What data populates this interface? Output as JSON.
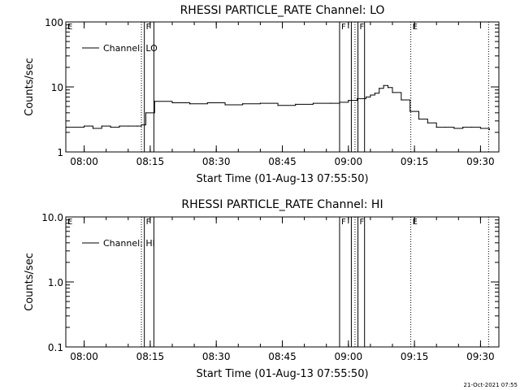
{
  "footer": {
    "timestamp": "21-Oct-2021 07:55"
  },
  "chart_data": [
    {
      "type": "line",
      "title": "RHESSI PARTICLE_RATE Channel: LO",
      "xlabel": "Start Time (01-Aug-13 07:55:50)",
      "ylabel": "Counts/sec",
      "y_scale": "log",
      "ylim": [
        1,
        100
      ],
      "xlim": [
        "07:55:50",
        "09:34:10"
      ],
      "x_ticks": [
        "08:00",
        "08:15",
        "08:30",
        "08:45",
        "09:00",
        "09:15",
        "09:30"
      ],
      "y_ticks": [
        "1",
        "10",
        "100"
      ],
      "legend": {
        "placement": "top-left",
        "entries": [
          "Channel: LO"
        ]
      },
      "event_markers": [
        {
          "label": "E",
          "time": "07:55:50",
          "style": "dotted"
        },
        {
          "label": "",
          "time": "08:13:00",
          "style": "dotted"
        },
        {
          "label": "F",
          "time": "08:13:40",
          "style": "solid"
        },
        {
          "label": "",
          "time": "08:15:50",
          "style": "solid"
        },
        {
          "label": "F",
          "time": "08:58:00",
          "style": "solid"
        },
        {
          "label": "",
          "time": "09:00:40",
          "style": "solid"
        },
        {
          "label": "",
          "time": "09:01:30",
          "style": "dotted"
        },
        {
          "label": "F",
          "time": "09:02:10",
          "style": "solid"
        },
        {
          "label": "",
          "time": "09:03:40",
          "style": "solid"
        },
        {
          "label": "E",
          "time": "09:14:10",
          "style": "dotted"
        },
        {
          "label": "",
          "time": "09:31:50",
          "style": "dotted"
        }
      ],
      "series": [
        {
          "name": "Channel: LO",
          "x": [
            "07:56:00",
            "08:00:00",
            "08:02:00",
            "08:04:00",
            "08:06:00",
            "08:08:00",
            "08:10:00",
            "08:12:00",
            "08:13:00",
            "08:14:00",
            "08:16:00",
            "08:20:00",
            "08:24:00",
            "08:28:00",
            "08:32:00",
            "08:36:00",
            "08:40:00",
            "08:44:00",
            "08:48:00",
            "08:52:00",
            "08:56:00",
            "08:58:00",
            "09:00:00",
            "09:02:00",
            "09:04:00",
            "09:05:00",
            "09:06:00",
            "09:07:00",
            "09:08:00",
            "09:09:00",
            "09:10:00",
            "09:12:00",
            "09:14:00",
            "09:16:00",
            "09:18:00",
            "09:20:00",
            "09:22:00",
            "09:24:00",
            "09:26:00",
            "09:28:00",
            "09:30:00",
            "09:32:00"
          ],
          "values": [
            2.4,
            2.5,
            2.3,
            2.5,
            2.4,
            2.5,
            2.5,
            2.5,
            2.6,
            4.0,
            6.0,
            5.7,
            5.5,
            5.7,
            5.3,
            5.5,
            5.6,
            5.2,
            5.4,
            5.6,
            5.6,
            5.8,
            6.2,
            6.6,
            7.0,
            7.5,
            8.0,
            9.5,
            10.5,
            9.8,
            8.2,
            6.3,
            4.2,
            3.2,
            2.8,
            2.4,
            2.4,
            2.3,
            2.4,
            2.4,
            2.3,
            2.2
          ]
        }
      ]
    },
    {
      "type": "line",
      "title": "RHESSI PARTICLE_RATE Channel: HI",
      "xlabel": "Start Time (01-Aug-13 07:55:50)",
      "ylabel": "Counts/sec",
      "y_scale": "log",
      "ylim": [
        0.1,
        10
      ],
      "xlim": [
        "07:55:50",
        "09:34:10"
      ],
      "x_ticks": [
        "08:00",
        "08:15",
        "08:30",
        "08:45",
        "09:00",
        "09:15",
        "09:30"
      ],
      "y_ticks": [
        "0.1",
        "1.0",
        "10.0"
      ],
      "legend": {
        "placement": "top-left",
        "entries": [
          "Channel: HI"
        ]
      },
      "event_markers": [
        {
          "label": "E",
          "time": "07:55:50",
          "style": "dotted"
        },
        {
          "label": "",
          "time": "08:13:00",
          "style": "dotted"
        },
        {
          "label": "F",
          "time": "08:13:40",
          "style": "solid"
        },
        {
          "label": "",
          "time": "08:15:50",
          "style": "solid"
        },
        {
          "label": "F",
          "time": "08:58:00",
          "style": "solid"
        },
        {
          "label": "",
          "time": "09:00:40",
          "style": "solid"
        },
        {
          "label": "",
          "time": "09:01:30",
          "style": "dotted"
        },
        {
          "label": "F",
          "time": "09:02:10",
          "style": "solid"
        },
        {
          "label": "",
          "time": "09:03:40",
          "style": "solid"
        },
        {
          "label": "E",
          "time": "09:14:10",
          "style": "dotted"
        },
        {
          "label": "",
          "time": "09:31:50",
          "style": "dotted"
        }
      ],
      "series": [
        {
          "name": "Channel: HI",
          "x": [],
          "values": []
        }
      ]
    }
  ]
}
